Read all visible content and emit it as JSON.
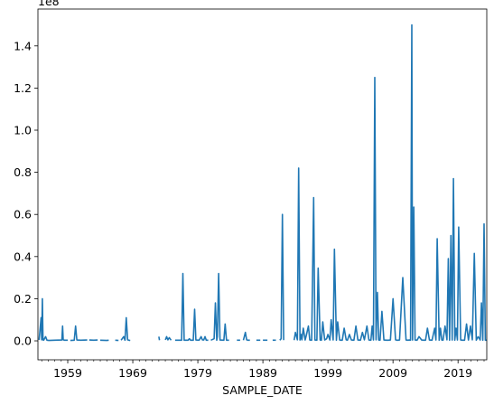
{
  "chart_data": {
    "type": "line",
    "xlabel": "SAMPLE_DATE",
    "ylabel": "",
    "scale_label": "1e8",
    "line_color": "#1f77b4",
    "grid": false,
    "legend": "none",
    "xlim": [
      "1954-06",
      "2023-06"
    ],
    "ylim": [
      -0.09,
      1.575
    ],
    "xticks": [
      "1959",
      "1969",
      "1979",
      "1989",
      "1999",
      "2009",
      "2019"
    ],
    "yticks": [
      "0.0",
      "0.2",
      "0.4",
      "0.6",
      "0.8",
      "1.0",
      "1.2",
      "1.4"
    ],
    "segments": [
      {
        "x": [
          1954.6,
          1954.9,
          1955.0,
          1955.1,
          1955.2,
          1955.3,
          1955.6,
          1955.8,
          1956.1,
          1957.0,
          1958.1,
          1958.2,
          1958.3,
          1958.5,
          1959.0
        ],
        "y": [
          0.005,
          0.11,
          0.005,
          0.2,
          0.005,
          0.003,
          0.02,
          0.003,
          0.002,
          0.003,
          0.004,
          0.07,
          0.005,
          0.003,
          0.003
        ]
      },
      {
        "x": [
          1959.4,
          1960.0,
          1960.2,
          1960.4,
          1961.0,
          1962.0
        ],
        "y": [
          0.002,
          0.003,
          0.07,
          0.004,
          0.003,
          0.004
        ]
      },
      {
        "x": [
          1962.3,
          1963.0,
          1963.6
        ],
        "y": [
          0.004,
          0.003,
          0.004
        ]
      },
      {
        "x": [
          1964.0,
          1965.0,
          1965.3
        ],
        "y": [
          0.003,
          0.002,
          0.003
        ]
      },
      {
        "x": [
          1966.3,
          1966.8
        ],
        "y": [
          0.003,
          0.002
        ]
      },
      {
        "x": [
          1967.2,
          1967.6,
          1967.8,
          1968.0,
          1968.2,
          1968.4,
          1968.6
        ],
        "y": [
          0.003,
          0.02,
          0.003,
          0.11,
          0.005,
          0.003,
          0.002
        ]
      },
      {
        "x": [
          1973.0,
          1973.1
        ],
        "y": [
          0.02,
          0.003
        ]
      },
      {
        "x": [
          1974.0,
          1974.2,
          1974.4,
          1974.6,
          1974.9
        ],
        "y": [
          0.005,
          0.02,
          0.005,
          0.015,
          0.003
        ]
      },
      {
        "x": [
          1975.5,
          1976.5,
          1976.7,
          1976.9,
          1977.5,
          1977.7,
          1977.9,
          1978.3,
          1978.5,
          1978.7,
          1979.2,
          1979.5,
          1979.7,
          1979.9,
          1980.1,
          1980.3,
          1980.6
        ],
        "y": [
          0.003,
          0.003,
          0.32,
          0.003,
          0.003,
          0.01,
          0.003,
          0.003,
          0.15,
          0.004,
          0.003,
          0.02,
          0.005,
          0.004,
          0.02,
          0.003,
          0.003
        ]
      },
      {
        "x": [
          1981.0,
          1981.5,
          1981.7,
          1981.9,
          1982.0,
          1982.2,
          1982.4,
          1983.0,
          1983.2,
          1983.4,
          1983.8
        ],
        "y": [
          0.003,
          0.01,
          0.18,
          0.003,
          0.02,
          0.32,
          0.004,
          0.003,
          0.08,
          0.003,
          0.003
        ]
      },
      {
        "x": [
          1985.0,
          1985.5
        ],
        "y": [
          0.003,
          0.003
        ]
      },
      {
        "x": [
          1986.0,
          1986.3,
          1986.5,
          1986.7,
          1987.0
        ],
        "y": [
          0.003,
          0.04,
          0.005,
          0.003,
          0.003
        ]
      },
      {
        "x": [
          1988.0,
          1988.6
        ],
        "y": [
          0.003,
          0.003
        ]
      },
      {
        "x": [
          1989.0,
          1989.7
        ],
        "y": [
          0.003,
          0.003
        ]
      },
      {
        "x": [
          1990.5,
          1991.0
        ],
        "y": [
          0.003,
          0.003
        ]
      },
      {
        "x": [
          1991.6,
          1991.8,
          1992.0,
          1992.2
        ],
        "y": [
          0.003,
          0.01,
          0.6,
          0.003
        ]
      },
      {
        "x": [
          1993.8,
          1994.0,
          1994.3,
          1994.5,
          1994.7,
          1994.9,
          1995.0,
          1995.2,
          1995.5,
          1995.7,
          1996.0,
          1996.2,
          1996.5,
          1996.8,
          1997.0,
          1997.3,
          1997.5,
          1997.8,
          1998.0,
          1998.2,
          1998.5,
          1998.8,
          1999.0,
          1999.3,
          1999.5,
          1999.8,
          2000.0,
          2000.3,
          2000.5,
          2000.8,
          2001.0,
          2001.2,
          2001.5,
          2001.8,
          2002.0,
          2002.3,
          2002.6,
          2003.0,
          2003.3,
          2003.6,
          2004.0,
          2004.3,
          2004.6,
          2005.0,
          2005.3,
          2005.6,
          2005.8,
          2006.0,
          2006.2,
          2006.4,
          2006.6,
          2006.8,
          2007.0,
          2007.3,
          2007.6,
          2008.0,
          2008.3,
          2008.6,
          2009.0,
          2009.4,
          2009.6,
          2009.8,
          2010.0,
          2010.5,
          2011.0,
          2011.3,
          2011.5,
          2011.7,
          2011.9,
          2012.0,
          2012.2,
          2012.4,
          2012.7,
          2013.0,
          2013.4,
          2013.7,
          2014.0,
          2014.3,
          2014.6,
          2015.0,
          2015.4,
          2015.6,
          2015.8,
          2016.1,
          2016.3,
          2016.5,
          2016.7,
          2017.0,
          2017.3,
          2017.5,
          2017.7,
          2017.9,
          2018.1,
          2018.3,
          2018.5,
          2018.7,
          2018.9,
          2019.1,
          2019.4,
          2019.7,
          2020.0,
          2020.3,
          2020.6,
          2020.9,
          2021.2,
          2021.5,
          2021.8,
          2022.1,
          2022.4,
          2022.6,
          2022.8,
          2023.0,
          2023.2,
          2023.4
        ],
        "y": [
          0.003,
          0.04,
          0.005,
          0.82,
          0.004,
          0.03,
          0.005,
          0.06,
          0.004,
          0.03,
          0.07,
          0.004,
          0.003,
          0.68,
          0.004,
          0.003,
          0.345,
          0.004,
          0.003,
          0.09,
          0.004,
          0.01,
          0.03,
          0.004,
          0.1,
          0.004,
          0.435,
          0.003,
          0.09,
          0.004,
          0.003,
          0.003,
          0.06,
          0.005,
          0.003,
          0.03,
          0.004,
          0.003,
          0.07,
          0.004,
          0.003,
          0.04,
          0.005,
          0.07,
          0.004,
          0.003,
          0.07,
          0.004,
          1.25,
          0.005,
          0.23,
          0.004,
          0.003,
          0.14,
          0.004,
          0.003,
          0.003,
          0.004,
          0.2,
          0.005,
          0.003,
          0.003,
          0.004,
          0.3,
          0.004,
          0.003,
          0.004,
          0.003,
          1.5,
          0.004,
          0.635,
          0.004,
          0.003,
          0.02,
          0.004,
          0.003,
          0.003,
          0.06,
          0.004,
          0.003,
          0.06,
          0.004,
          0.485,
          0.003,
          0.06,
          0.004,
          0.003,
          0.07,
          0.005,
          0.39,
          0.003,
          0.5,
          0.004,
          0.77,
          0.003,
          0.06,
          0.004,
          0.54,
          0.004,
          0.003,
          0.003,
          0.08,
          0.004,
          0.07,
          0.005,
          0.415,
          0.003,
          0.02,
          0.004,
          0.18,
          0.003,
          0.555,
          0.003,
          0.003
        ]
      }
    ]
  }
}
